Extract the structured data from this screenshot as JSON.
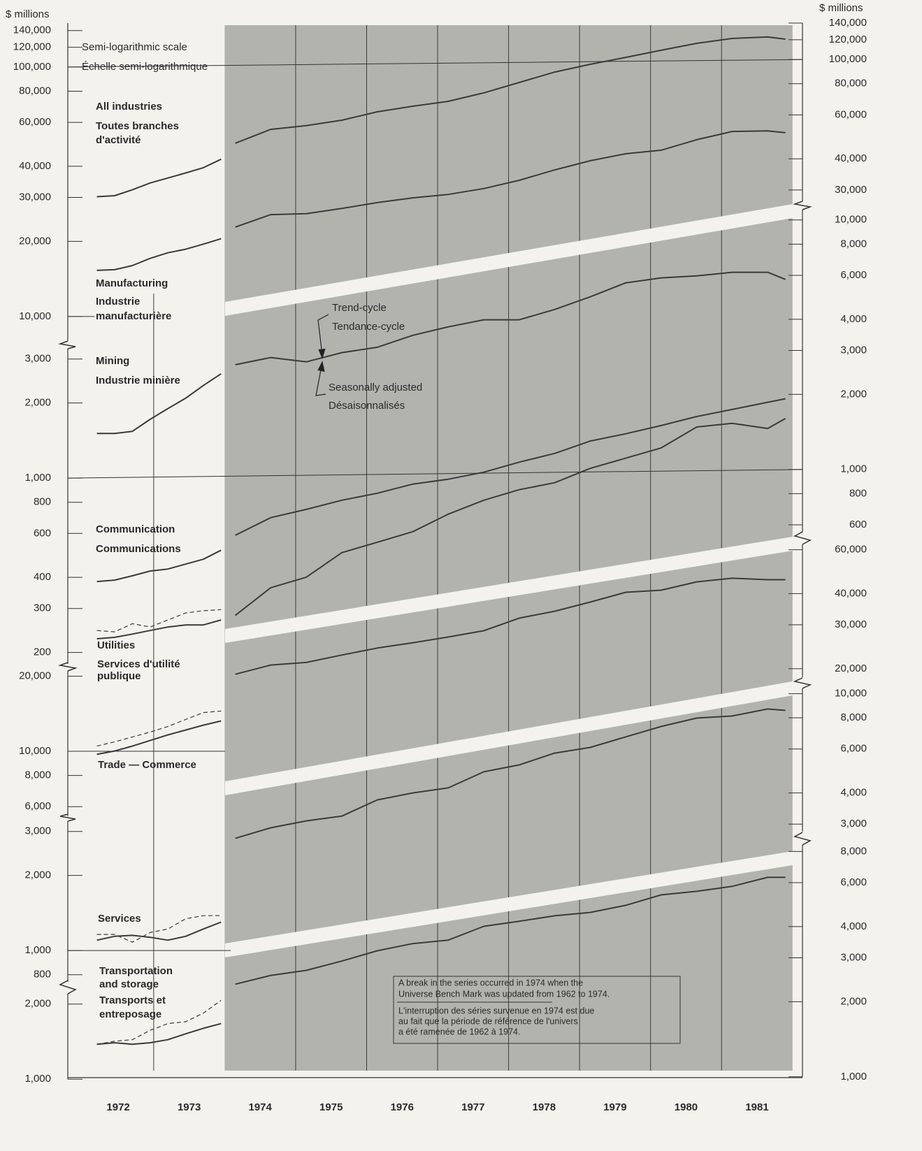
{
  "units": {
    "left": "$ millions",
    "right": "$ millions"
  },
  "scale_note": [
    "Semi-logarithmic scale",
    "Échelle semi-logarithmique"
  ],
  "x_axis": {
    "xlim": [
      1971.79,
      1982.14
    ],
    "xticks": [
      {
        "value": 1972.5,
        "label": "1972"
      },
      {
        "value": 1973.5,
        "label": "1973"
      },
      {
        "value": 1974.5,
        "label": "1974"
      },
      {
        "value": 1975.5,
        "label": "1975"
      },
      {
        "value": 1976.5,
        "label": "1976"
      },
      {
        "value": 1977.5,
        "label": "1977"
      },
      {
        "value": 1978.5,
        "label": "1978"
      },
      {
        "value": 1979.5,
        "label": "1979"
      },
      {
        "value": 1980.5,
        "label": "1980"
      },
      {
        "value": 1981.5,
        "label": "1981"
      }
    ],
    "xgrid": [
      1973,
      1975,
      1976,
      1977,
      1978,
      1979,
      1980,
      1981
    ],
    "shade": [
      1974,
      1982
    ]
  },
  "chart_data": [
    {
      "type": "line",
      "log_scale": true,
      "ylim": [
        8000,
        150000
      ],
      "yticks": [
        {
          "value": 140000,
          "label": "140,000"
        },
        {
          "value": 120000,
          "label": "120,000"
        },
        {
          "value": 100000,
          "label": "100,000"
        },
        {
          "value": 80000,
          "label": "80,000"
        },
        {
          "value": 60000,
          "label": "60,000"
        },
        {
          "value": 40000,
          "label": "40,000"
        },
        {
          "value": 30000,
          "label": "30,000"
        },
        {
          "value": 20000,
          "label": "20,000"
        },
        {
          "value": 10000,
          "label": "10,000"
        }
      ],
      "y2lim": [
        27000,
        140000
      ],
      "y2ticks": [
        {
          "value": 140000,
          "label": "140,000"
        },
        {
          "value": 120000,
          "label": "120,000"
        },
        {
          "value": 100000,
          "label": "100,000"
        },
        {
          "value": 80000,
          "label": "80,000"
        },
        {
          "value": 60000,
          "label": "60,000"
        },
        {
          "value": 40000,
          "label": "40,000"
        },
        {
          "value": 30000,
          "label": "30,000"
        }
      ],
      "series": [
        {
          "axis": "y",
          "style": "solid",
          "color": "#3a3a3a",
          "x": [
            1972.2,
            1972.45,
            1972.7,
            1972.95,
            1973.2,
            1973.45,
            1973.7,
            1973.95
          ],
          "values": [
            30200,
            30500,
            32200,
            34300,
            35900,
            37600,
            39500,
            42700
          ]
        },
        {
          "axis": "y2",
          "style": "solid",
          "color": "#3a3a3a",
          "x": [
            1974.15,
            1974.65,
            1975.15,
            1975.65,
            1976.15,
            1976.65,
            1977.15,
            1977.65,
            1978.15,
            1978.65,
            1979.15,
            1979.65,
            1980.15,
            1980.65,
            1981.15,
            1981.65,
            1981.9
          ],
          "values": [
            46200,
            52500,
            54300,
            57100,
            61700,
            65000,
            68000,
            73500,
            80900,
            89100,
            95700,
            102000,
            108900,
            116100,
            121500,
            123100,
            120700
          ]
        },
        {
          "axis": "y",
          "style": "solid",
          "color": "#3a3a3a",
          "x": [
            1972.2,
            1972.45,
            1972.7,
            1972.95,
            1973.2,
            1973.45,
            1973.7,
            1973.95
          ],
          "values": [
            15300,
            15400,
            16000,
            17100,
            18000,
            18600,
            19500,
            20500
          ]
        },
        {
          "axis": "y2",
          "style": "solid",
          "color": "#3a3a3a",
          "x": [
            1974.15,
            1974.65,
            1975.15,
            1975.65,
            1976.15,
            1976.65,
            1977.15,
            1977.65,
            1978.15,
            1978.65,
            1979.15,
            1979.65,
            1980.15,
            1980.65,
            1981.15,
            1981.65,
            1981.9
          ],
          "values": [
            21300,
            23900,
            24100,
            25300,
            26700,
            27900,
            28800,
            30400,
            32800,
            36100,
            39300,
            41900,
            43300,
            47700,
            51500,
            51800,
            50900
          ]
        }
      ]
    },
    {
      "type": "line",
      "log_scale": true,
      "ylim": [
        180,
        3300
      ],
      "yticks": [
        {
          "value": 3000,
          "label": "3,000"
        },
        {
          "value": 2000,
          "label": "2,000"
        },
        {
          "value": 1000,
          "label": "1,000"
        },
        800,
        600,
        400,
        300,
        200
      ],
      "y2lim": [
        560,
        11000
      ],
      "y2ticks": [
        {
          "value": 10000,
          "label": "10,000"
        },
        {
          "value": 8000,
          "label": "8,000"
        },
        {
          "value": 6000,
          "label": "6,000"
        },
        {
          "value": 4000,
          "label": "4,000"
        },
        {
          "value": 3000,
          "label": "3,000"
        },
        {
          "value": 2000,
          "label": "2,000"
        },
        {
          "value": 1000,
          "label": "1,000"
        },
        800,
        600
      ],
      "series": [
        {
          "axis": "y",
          "style": "solid",
          "color": "#3a3a3a",
          "x": [
            1972.2,
            1972.45,
            1972.7,
            1972.95,
            1973.2,
            1973.45,
            1973.7,
            1973.95
          ],
          "values": [
            1510,
            1510,
            1540,
            1720,
            1900,
            2090,
            2350,
            2620
          ]
        },
        {
          "axis": "y2",
          "style": "solid",
          "color": "#3a3a3a",
          "x": [
            1974.15,
            1974.65,
            1975.15,
            1975.65,
            1976.15,
            1976.65,
            1977.15,
            1977.65,
            1978.15,
            1978.65,
            1979.15,
            1979.65,
            1980.15,
            1980.65,
            1981.15,
            1981.65,
            1981.9
          ],
          "values": [
            2630,
            2810,
            2700,
            2940,
            3090,
            3450,
            3730,
            3980,
            3980,
            4380,
            4920,
            5600,
            5860,
            5970,
            6170,
            6170,
            5780
          ]
        },
        {
          "axis": "y",
          "style": "solid",
          "color": "#3a3a3a",
          "x": [
            1972.2,
            1972.45,
            1972.7,
            1972.95,
            1973.2,
            1973.45,
            1973.7,
            1973.95
          ],
          "values": [
            385,
            390,
            406,
            424,
            432,
            452,
            473,
            514
          ]
        },
        {
          "axis": "y2",
          "style": "solid",
          "color": "#3a3a3a",
          "x": [
            1974.15,
            1974.65,
            1975.15,
            1975.65,
            1976.15,
            1976.65,
            1977.15,
            1977.65,
            1978.15,
            1978.65,
            1979.15,
            1979.65,
            1980.15,
            1980.65,
            1981.15,
            1981.65,
            1981.9
          ],
          "values": [
            545,
            641,
            692,
            753,
            803,
            874,
            914,
            975,
            1070,
            1160,
            1300,
            1390,
            1500,
            1630,
            1740,
            1860,
            1920
          ]
        },
        {
          "axis": "y",
          "style": "solid",
          "color": "#3a3a3a",
          "x": [
            1972.2,
            1972.45,
            1972.7,
            1972.95,
            1973.2,
            1973.45,
            1973.7,
            1973.95
          ],
          "values": [
            227,
            230,
            237,
            245,
            253,
            258,
            258,
            270
          ]
        },
        {
          "axis": "y",
          "style": "dashed",
          "color": "#3a3a3a",
          "x": [
            1972.2,
            1972.45,
            1972.7,
            1972.95,
            1973.2,
            1973.45,
            1973.7,
            1973.95
          ],
          "values": [
            245,
            242,
            261,
            253,
            270,
            288,
            294,
            297
          ]
        },
        {
          "axis": "y2",
          "style": "solid",
          "color": "#3a3a3a",
          "x": [
            1974.15,
            1974.65,
            1975.15,
            1975.65,
            1976.15,
            1976.65,
            1977.15,
            1977.65,
            1978.15,
            1978.65,
            1979.15,
            1979.65,
            1980.15,
            1980.65,
            1981.15,
            1981.65,
            1981.9
          ],
          "values": [
            260,
            336,
            370,
            464,
            511,
            563,
            662,
            753,
            830,
            885,
            1010,
            1110,
            1220,
            1480,
            1530,
            1460,
            1600
          ]
        }
      ]
    },
    {
      "type": "line",
      "log_scale": true,
      "ylim": [
        5500,
        21000
      ],
      "yticks": [
        {
          "value": 20000,
          "label": "20,000"
        },
        {
          "value": 10000,
          "label": "10,000"
        },
        {
          "value": 8000,
          "label": "8,000"
        },
        {
          "value": 6000,
          "label": "6,000"
        }
      ],
      "y2lim": [
        18500,
        63000
      ],
      "y2ticks": [
        {
          "value": 60000,
          "label": "60,000"
        },
        {
          "value": 40000,
          "label": "40,000"
        },
        {
          "value": 30000,
          "label": "30,000"
        },
        {
          "value": 20000,
          "label": "20,000"
        }
      ],
      "series": [
        {
          "axis": "y",
          "style": "solid",
          "color": "#3a3a3a",
          "x": [
            1972.2,
            1972.45,
            1972.7,
            1972.95,
            1973.2,
            1973.45,
            1973.7,
            1973.95
          ],
          "values": [
            9720,
            10030,
            10490,
            11050,
            11630,
            12170,
            12730,
            13230
          ]
        },
        {
          "axis": "y",
          "style": "dashed",
          "color": "#3a3a3a",
          "x": [
            1972.2,
            1972.45,
            1972.7,
            1972.95,
            1973.2,
            1973.45,
            1973.7,
            1973.95
          ],
          "values": [
            10490,
            10910,
            11410,
            11940,
            12570,
            13410,
            14300,
            14490
          ]
        },
        {
          "axis": "y2",
          "style": "solid",
          "color": "#3a3a3a",
          "x": [
            1974.15,
            1974.65,
            1975.15,
            1975.65,
            1976.15,
            1976.65,
            1977.15,
            1977.65,
            1978.15,
            1978.65,
            1979.15,
            1979.65,
            1980.15,
            1980.65,
            1981.15,
            1981.65,
            1981.9
          ],
          "values": [
            19000,
            20700,
            21200,
            22700,
            24200,
            25400,
            26800,
            28400,
            31900,
            34000,
            37000,
            40500,
            41300,
            44600,
            46100,
            45500,
            45500
          ]
        }
      ]
    },
    {
      "type": "line",
      "log_scale": true,
      "ylim": [
        750,
        3300
      ],
      "yticks": [
        {
          "value": 3000,
          "label": "3,000"
        },
        {
          "value": 2000,
          "label": "2,000"
        },
        {
          "value": 1000,
          "label": "1,000"
        },
        800
      ],
      "y2lim": [
        2800,
        10500
      ],
      "y2ticks": [
        {
          "value": 10000,
          "label": "10,000"
        },
        {
          "value": 8000,
          "label": "8,000"
        },
        {
          "value": 6000,
          "label": "6,000"
        },
        {
          "value": 4000,
          "label": "4,000"
        },
        {
          "value": 3000,
          "label": "3,000"
        }
      ],
      "series": [
        {
          "axis": "y",
          "style": "solid",
          "color": "#3a3a3a",
          "x": [
            1972.2,
            1972.45,
            1972.7,
            1972.95,
            1973.2,
            1973.45,
            1973.7,
            1973.95
          ],
          "values": [
            1100,
            1140,
            1150,
            1130,
            1100,
            1140,
            1220,
            1300
          ]
        },
        {
          "axis": "y",
          "style": "dashed",
          "color": "#3a3a3a",
          "x": [
            1972.2,
            1972.45,
            1972.7,
            1972.95,
            1973.2,
            1973.45,
            1973.7,
            1973.95
          ],
          "values": [
            1160,
            1160,
            1080,
            1180,
            1220,
            1340,
            1380,
            1380
          ]
        },
        {
          "axis": "y2",
          "style": "solid",
          "color": "#3a3a3a",
          "x": [
            1974.15,
            1974.65,
            1975.15,
            1975.65,
            1976.15,
            1976.65,
            1977.15,
            1977.65,
            1978.15,
            1978.65,
            1979.15,
            1979.65,
            1980.15,
            1980.65,
            1981.15,
            1981.65,
            1981.9
          ],
          "values": [
            2630,
            2900,
            3090,
            3230,
            3750,
            4000,
            4190,
            4860,
            5180,
            5780,
            6090,
            6710,
            7390,
            7980,
            8140,
            8680,
            8570
          ]
        }
      ]
    },
    {
      "type": "line",
      "log_scale": true,
      "ylim": [
        1000,
        2200
      ],
      "yticks": [
        {
          "value": 2000,
          "label": "2,000"
        },
        {
          "value": 1000,
          "label": "1,000"
        }
      ],
      "y2lim": [
        1000,
        8500
      ],
      "y2ticks": [
        {
          "value": 8000,
          "label": "8,000"
        },
        {
          "value": 6000,
          "label": "6,000"
        },
        {
          "value": 4000,
          "label": "4,000"
        },
        {
          "value": 3000,
          "label": "3,000"
        },
        {
          "value": 2000,
          "label": "2,000"
        },
        {
          "value": 1000,
          "label": "1,000"
        }
      ],
      "series": [
        {
          "axis": "y",
          "style": "solid",
          "color": "#3a3a3a",
          "x": [
            1972.2,
            1972.45,
            1972.7,
            1972.95,
            1973.2,
            1973.45,
            1973.7,
            1973.95
          ],
          "values": [
            1380,
            1400,
            1380,
            1400,
            1440,
            1520,
            1600,
            1670
          ]
        },
        {
          "axis": "y",
          "style": "dashed",
          "color": "#3a3a3a",
          "x": [
            1972.2,
            1972.45,
            1972.7,
            1972.95,
            1973.2,
            1973.45,
            1973.7,
            1973.95
          ],
          "values": [
            1380,
            1420,
            1440,
            1570,
            1670,
            1700,
            1840,
            2070
          ]
        },
        {
          "axis": "y2",
          "style": "solid",
          "color": "#3a3a3a",
          "x": [
            1974.15,
            1974.65,
            1975.15,
            1975.65,
            1976.15,
            1976.65,
            1977.15,
            1977.65,
            1978.15,
            1978.65,
            1979.15,
            1979.65,
            1980.15,
            1980.65,
            1981.15,
            1981.65,
            1981.9
          ],
          "values": [
            2350,
            2550,
            2670,
            2910,
            3200,
            3420,
            3530,
            4010,
            4200,
            4420,
            4560,
            4870,
            5360,
            5540,
            5800,
            6300,
            6300
          ]
        }
      ]
    }
  ],
  "labels": [
    "All industries",
    "Toutes branches",
    "d'activité",
    "Manufacturing",
    "Industrie",
    "manufacturière",
    "Mining",
    "Industrie minière",
    "Communication",
    "Communications",
    "Utilities",
    "Services d'utilité",
    "publique",
    "Trade — Commerce",
    "Services",
    "Transportation",
    "and storage",
    "Transports et",
    "entreposage"
  ],
  "annotations": {
    "trend": [
      "Trend-cycle",
      "Tendance-cycle"
    ],
    "seasonal": [
      "Seasonally adjusted",
      "Désaisonnalisés"
    ]
  },
  "note": {
    "en": [
      "A break in the series occurred in 1974 when the",
      "Universe Bench Mark was updated from 1962 to 1974."
    ],
    "fr": [
      "L'interruption des séries survenue en 1974 est due",
      "au fait que la période de référence de l'univers",
      "a été ramenée de 1962 à 1974."
    ]
  }
}
